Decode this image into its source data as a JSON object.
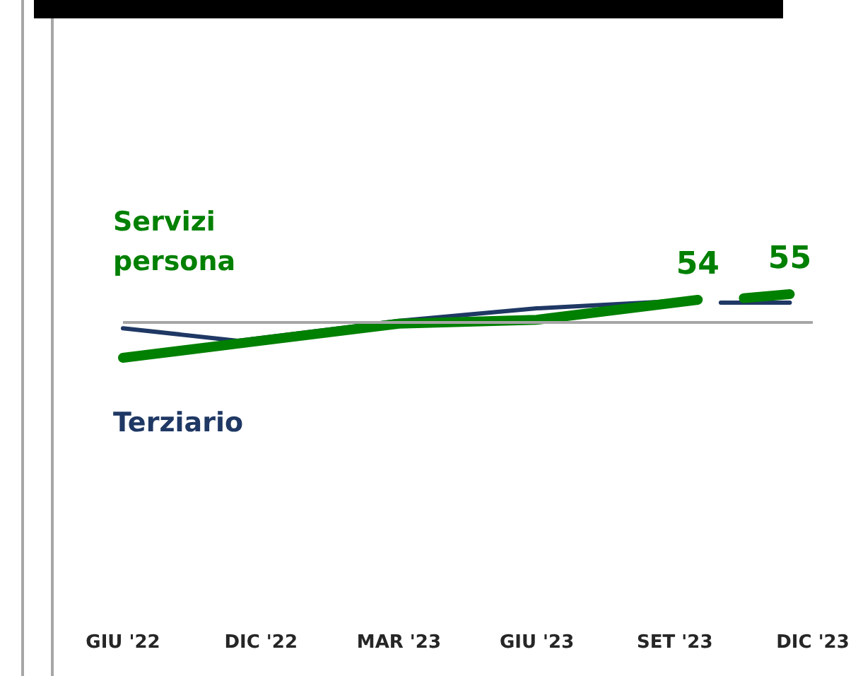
{
  "chart_data": {
    "type": "line",
    "categories": [
      "GIU '22",
      null,
      null,
      null,
      null,
      null,
      "DIC '22",
      null,
      null,
      null,
      null,
      null,
      "MAR '23",
      null,
      null,
      null,
      null,
      null,
      "GIU '23",
      null,
      null,
      null,
      null,
      null,
      "SET '23",
      null,
      null,
      null,
      null,
      null,
      "DIC '23"
    ],
    "series": [
      {
        "name": "Terziario",
        "color": "#1f3864",
        "values": [
          49,
          null,
          null,
          null,
          null,
          46.8,
          null,
          null,
          null,
          null,
          null,
          null,
          50.3,
          null,
          null,
          null,
          null,
          null,
          52.5,
          null,
          null,
          null,
          null,
          null,
          null,
          54,
          null,
          null,
          null,
          null,
          null
        ]
      },
      {
        "name": "Servizi persona",
        "color": "#008000",
        "values": [
          43.8,
          null,
          null,
          null,
          null,
          null,
          46.8,
          null,
          null,
          null,
          null,
          null,
          49.8,
          null,
          null,
          null,
          null,
          null,
          50.5,
          null,
          null,
          null,
          null,
          null,
          null,
          54,
          null,
          null,
          null,
          null,
          null
        ],
        "value_labels": [
          null,
          null,
          null,
          null,
          null,
          null,
          null,
          null,
          null,
          null,
          null,
          null,
          null,
          null,
          null,
          null,
          null,
          null,
          null,
          null,
          null,
          null,
          null,
          null,
          null,
          "54",
          null,
          null,
          null,
          null,
          null
        ]
      },
      {
        "color": "#1f3864",
        "values": [
          null,
          null,
          null,
          null,
          null,
          null,
          null,
          null,
          null,
          null,
          null,
          null,
          null,
          null,
          null,
          null,
          null,
          null,
          null,
          null,
          null,
          null,
          null,
          null,
          null,
          null,
          53.5,
          null,
          null,
          53.5,
          null
        ]
      },
      {
        "color": "#008000",
        "values": [
          null,
          null,
          null,
          null,
          null,
          null,
          null,
          null,
          null,
          null,
          null,
          null,
          null,
          null,
          null,
          null,
          null,
          null,
          null,
          null,
          null,
          null,
          null,
          null,
          null,
          null,
          null,
          54.3,
          null,
          55,
          null
        ],
        "value_labels": [
          null,
          null,
          null,
          null,
          null,
          null,
          null,
          null,
          null,
          null,
          null,
          null,
          null,
          null,
          null,
          null,
          null,
          null,
          null,
          null,
          null,
          null,
          null,
          null,
          null,
          null,
          null,
          null,
          null,
          "55",
          null
        ]
      }
    ],
    "ref_lines": [
      {
        "axis": "y",
        "value": 50,
        "label": null,
        "color": "#a6a6a6"
      }
    ],
    "grid": false,
    "legend": false,
    "marker": "none",
    "line_style": "solid",
    "tick_labels": "x"
  }
}
